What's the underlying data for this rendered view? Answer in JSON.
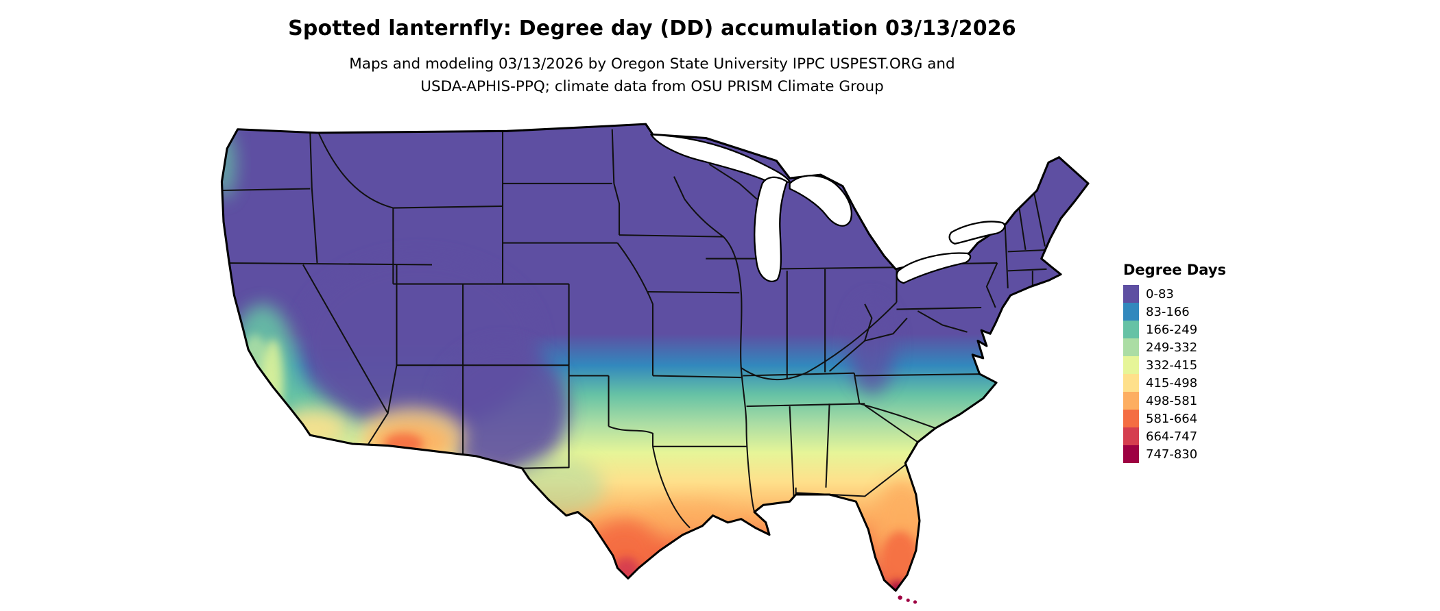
{
  "header": {
    "title": "Spotted lanternfly: Degree day (DD) accumulation 03/13/2026",
    "subtitle_line1": "Maps and modeling 03/13/2026 by Oregon State University IPPC USPEST.ORG and",
    "subtitle_line2": "USDA-APHIS-PPQ; climate data from OSU PRISM Climate Group"
  },
  "legend": {
    "title": "Degree Days",
    "items": [
      {
        "label": "0-83",
        "color": "#5e4fa2"
      },
      {
        "label": "83-166",
        "color": "#3288bd"
      },
      {
        "label": "166-249",
        "color": "#66c2a5"
      },
      {
        "label": "249-332",
        "color": "#abdda4"
      },
      {
        "label": "332-415",
        "color": "#e6f598"
      },
      {
        "label": "415-498",
        "color": "#fee08b"
      },
      {
        "label": "498-581",
        "color": "#fdae61"
      },
      {
        "label": "581-664",
        "color": "#f46d43"
      },
      {
        "label": "664-747",
        "color": "#d53e4f"
      },
      {
        "label": "747-830",
        "color": "#9e0142"
      }
    ]
  },
  "map": {
    "name": "Continental United States degree-day accumulation map",
    "border_color": "#000000",
    "water_color": "#ffffff"
  }
}
